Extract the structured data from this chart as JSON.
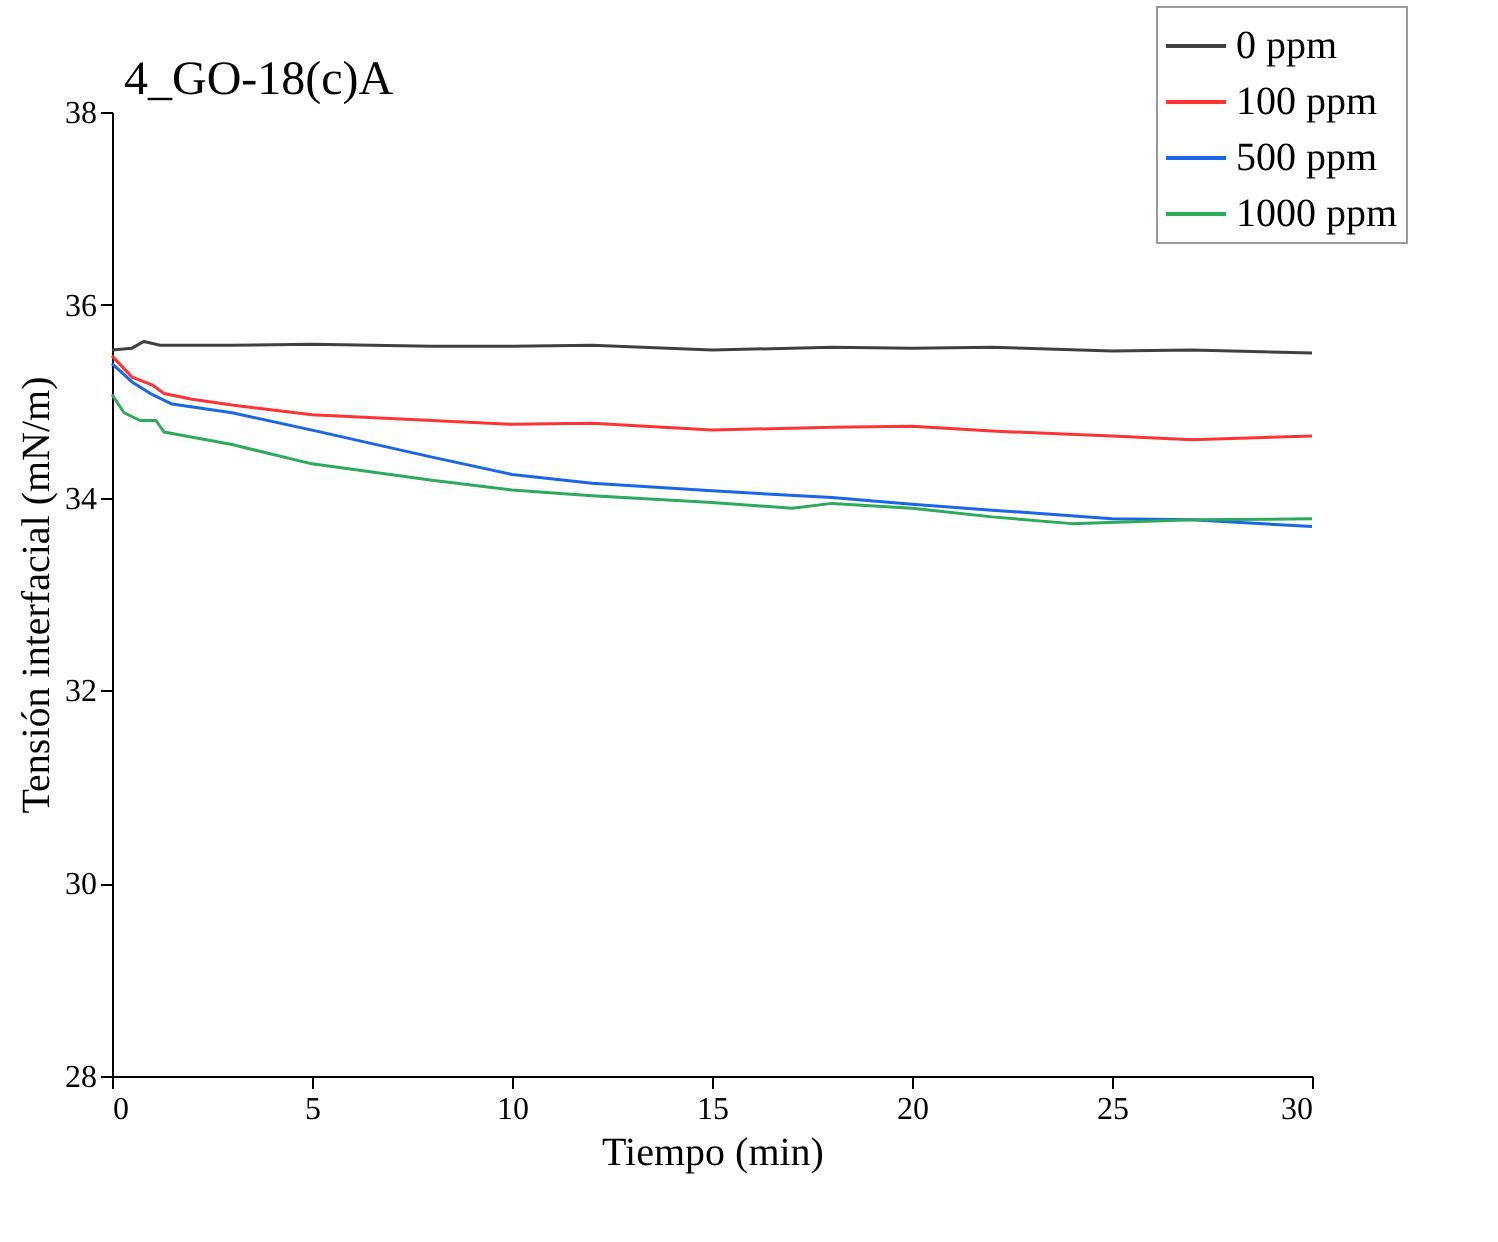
{
  "chart_data": {
    "type": "line",
    "title": "4_GO-18(c)A",
    "xlabel": "Tiempo (min)",
    "ylabel": "Tensión interfacial (mN/m)",
    "xlim": [
      0,
      30
    ],
    "ylim": [
      28,
      38
    ],
    "xticks": [
      0,
      5,
      10,
      15,
      20,
      25,
      30
    ],
    "yticks": [
      28,
      30,
      32,
      34,
      36,
      38
    ],
    "grid": false,
    "legend": "top right",
    "line_style": "solid",
    "marker": "none",
    "series": [
      {
        "name": "0 ppm",
        "color": "#404040",
        "x": [
          0,
          0.5,
          0.8,
          1.2,
          3,
          5,
          8,
          10,
          12,
          15,
          18,
          20,
          22,
          25,
          27,
          30
        ],
        "values": [
          35.53,
          35.55,
          35.62,
          35.58,
          35.58,
          35.59,
          35.57,
          35.57,
          35.58,
          35.53,
          35.56,
          35.55,
          35.56,
          35.52,
          35.53,
          35.5
        ]
      },
      {
        "name": "100 ppm",
        "color": "#ff3333",
        "x": [
          0,
          0.5,
          1,
          1.3,
          2,
          3,
          5,
          8,
          10,
          12,
          15,
          18,
          20,
          22,
          25,
          27,
          30
        ],
        "values": [
          35.47,
          35.25,
          35.17,
          35.08,
          35.02,
          34.96,
          34.86,
          34.8,
          34.76,
          34.77,
          34.7,
          34.73,
          34.74,
          34.69,
          34.64,
          34.6,
          34.64
        ]
      },
      {
        "name": "500 ppm",
        "color": "#1a66e6",
        "x": [
          0,
          0.5,
          1,
          1.5,
          3,
          5,
          8,
          10,
          12,
          15,
          18,
          20,
          22,
          25,
          27,
          30
        ],
        "values": [
          35.39,
          35.2,
          35.07,
          34.97,
          34.88,
          34.7,
          34.42,
          34.24,
          34.15,
          34.07,
          34.0,
          33.93,
          33.87,
          33.78,
          33.77,
          33.7
        ]
      },
      {
        "name": "1000 ppm",
        "color": "#2eaa5c",
        "x": [
          0,
          0.3,
          0.7,
          1.1,
          1.3,
          3,
          5,
          8,
          10,
          12,
          15,
          17,
          18,
          20,
          22,
          24,
          27,
          30
        ],
        "values": [
          35.07,
          34.88,
          34.8,
          34.8,
          34.68,
          34.55,
          34.35,
          34.18,
          34.08,
          34.02,
          33.95,
          33.89,
          33.94,
          33.89,
          33.8,
          33.73,
          33.77,
          33.78
        ]
      }
    ]
  }
}
